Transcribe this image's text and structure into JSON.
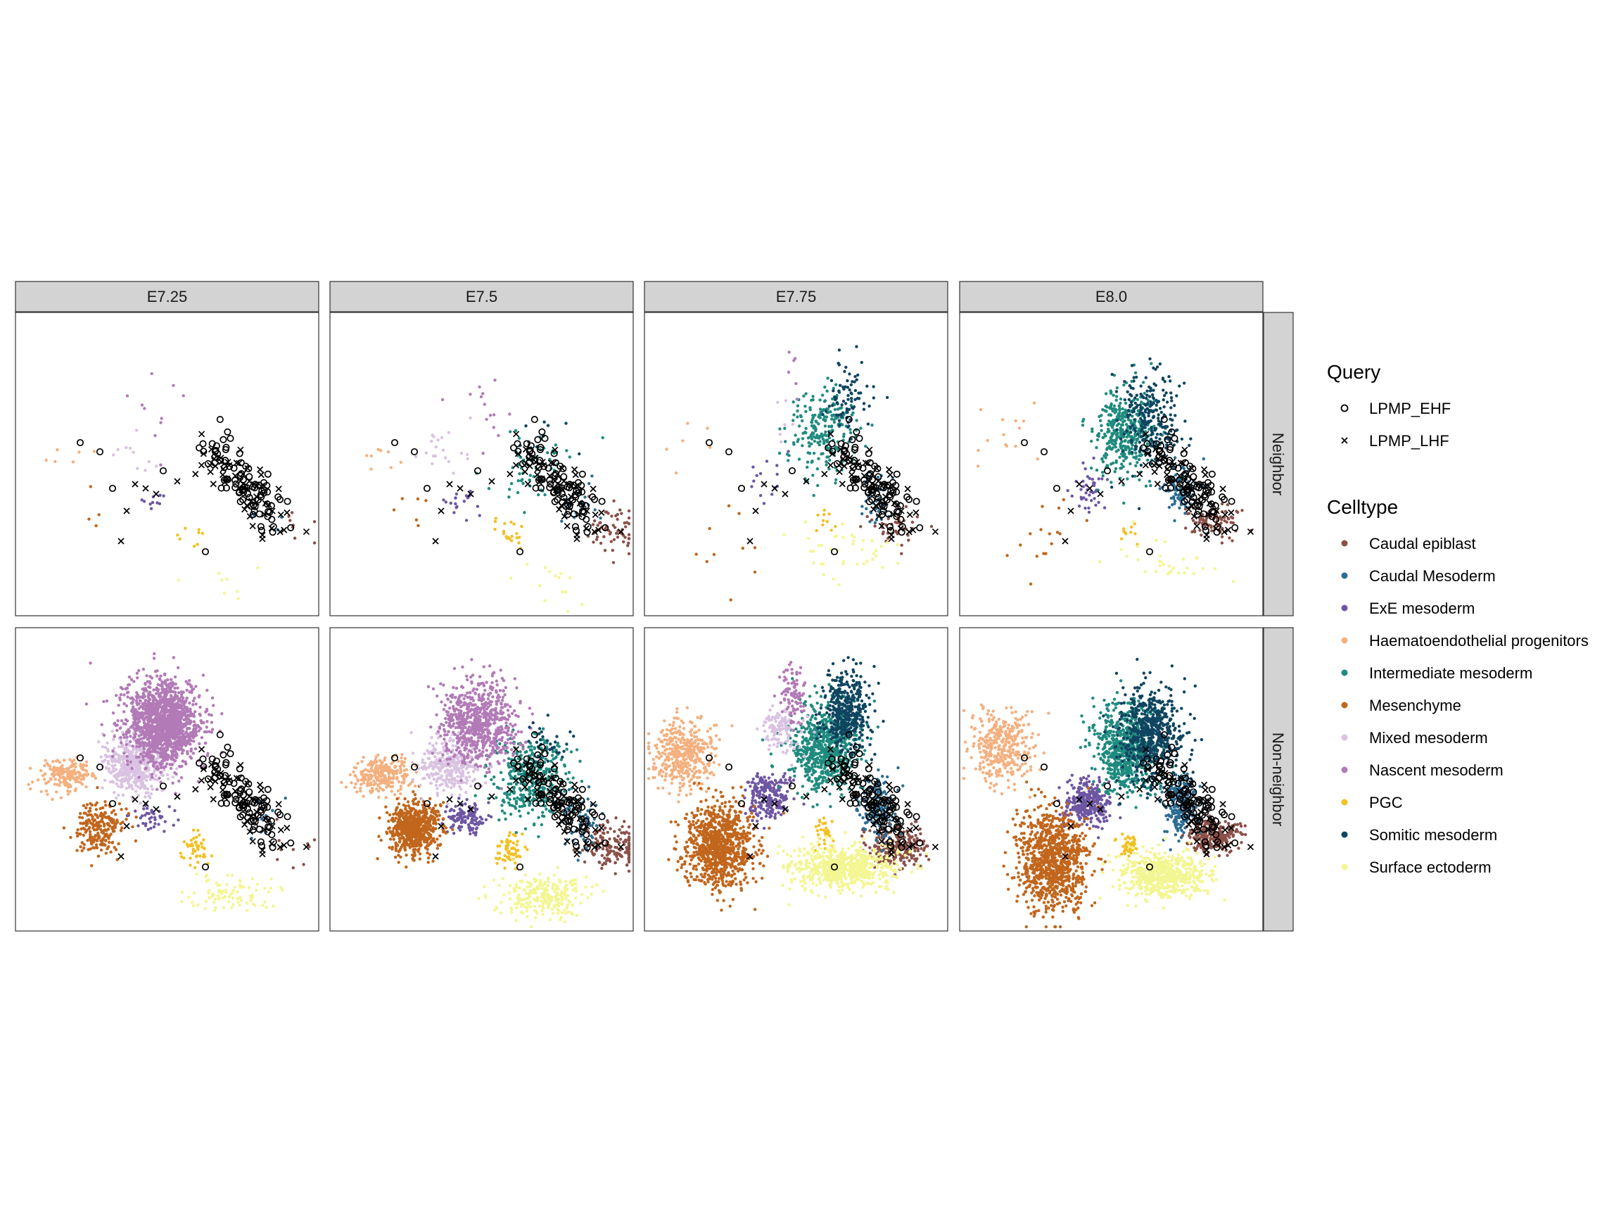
{
  "chart_data": {
    "type": "scatter",
    "columns": [
      "E7.25",
      "E7.5",
      "E7.75",
      "E8.0"
    ],
    "rows": [
      "Neighbor",
      "Non-neighbor"
    ],
    "legend_placement": "right",
    "grid": false,
    "legends": {
      "query": {
        "title": "Query",
        "items": [
          {
            "label": "LPMP_EHF",
            "shape": "open-circle"
          },
          {
            "label": "LPMP_LHF",
            "shape": "cross"
          }
        ]
      },
      "celltype": {
        "title": "Celltype",
        "items": [
          {
            "label": "Caudal epiblast",
            "color": "#8b5048"
          },
          {
            "label": "Caudal Mesoderm",
            "color": "#2b6d93"
          },
          {
            "label": "ExE mesoderm",
            "color": "#6e56a2"
          },
          {
            "label": "Haematoendothelial progenitors",
            "color": "#f4b07f"
          },
          {
            "label": "Intermediate mesoderm",
            "color": "#1f8b7f"
          },
          {
            "label": "Mesenchyme",
            "color": "#c1661c"
          },
          {
            "label": "Mixed mesoderm",
            "color": "#d9c2e2"
          },
          {
            "label": "Nascent mesoderm",
            "color": "#b27ab7"
          },
          {
            "label": "PGC",
            "color": "#f2c022"
          },
          {
            "label": "Somitic mesoderm",
            "color": "#0f4560"
          },
          {
            "label": "Surface ectoderm",
            "color": "#f3f691"
          }
        ]
      }
    }
  }
}
